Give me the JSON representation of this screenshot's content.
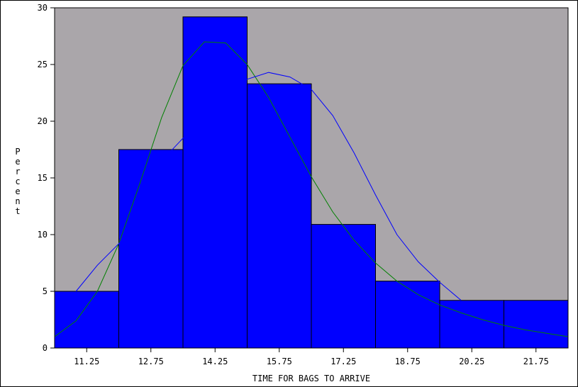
{
  "chart_data": {
    "type": "bar",
    "xlabel": "TIME FOR BAGS TO ARRIVE",
    "ylabel": "Percent",
    "ylim": [
      0,
      30
    ],
    "yticks": [
      0,
      5,
      10,
      15,
      20,
      25,
      30
    ],
    "xlim": [
      10.5,
      22.5
    ],
    "categories": [
      "11.25",
      "12.75",
      "14.25",
      "15.75",
      "17.25",
      "18.75",
      "20.25",
      "21.75"
    ],
    "bin_width": 1.5,
    "values": [
      5.0,
      17.5,
      29.2,
      23.3,
      10.9,
      5.9,
      4.2,
      4.2
    ],
    "grid": false,
    "colors": {
      "plot_background": "#aaa6aa",
      "bar_fill": "#0000ff",
      "bar_stroke": "#000000",
      "normal_curve": "#008000",
      "kernel_curve": "#0000ff"
    },
    "curves": [
      {
        "kind": "normal",
        "color": "#008000",
        "x": [
          10.5,
          11.0,
          11.5,
          12.0,
          12.5,
          13.0,
          13.5,
          14.0,
          14.5,
          15.0,
          15.5,
          16.0,
          16.5,
          17.0,
          17.5,
          18.0,
          18.5,
          19.0,
          19.5,
          20.0,
          20.5,
          21.0,
          21.5,
          22.0,
          22.5
        ],
        "y": [
          1.0,
          2.4,
          5.0,
          9.2,
          14.6,
          20.3,
          24.9,
          27.0,
          26.9,
          25.0,
          22.1,
          18.6,
          15.1,
          12.0,
          9.5,
          7.5,
          5.9,
          4.7,
          3.8,
          3.1,
          2.5,
          2.0,
          1.6,
          1.3,
          1.0
        ]
      },
      {
        "kind": "kernel",
        "color": "#0000ff",
        "x": [
          11.0,
          11.5,
          12.0,
          12.5,
          13.0,
          13.5,
          14.0,
          14.5,
          15.0,
          15.5,
          16.0,
          16.5,
          17.0,
          17.5,
          18.0,
          18.5,
          19.0,
          19.5,
          20.0
        ],
        "y": [
          5.0,
          7.3,
          9.2,
          11.5,
          16.5,
          18.5,
          20.0,
          22.5,
          23.7,
          24.3,
          23.9,
          22.8,
          20.5,
          17.2,
          13.5,
          10.0,
          7.6,
          5.8,
          4.2
        ]
      }
    ]
  }
}
